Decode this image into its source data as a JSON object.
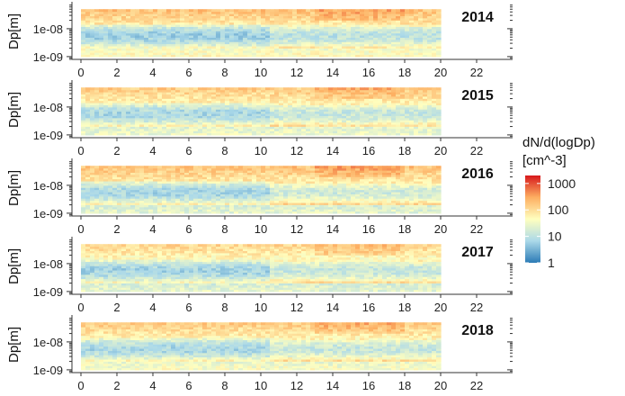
{
  "chart_data": {
    "type": "heatmap",
    "y_axis_title": "Dp[m]",
    "x_ticks": [
      0,
      2,
      4,
      6,
      8,
      10,
      12,
      14,
      16,
      18,
      20,
      22
    ],
    "xlim": [
      -0.5,
      24
    ],
    "y_ticks": [
      "1e-08",
      "1e-09"
    ],
    "ylim_log10": [
      -9.1,
      -7.1
    ],
    "data_x_range": [
      0,
      20
    ],
    "data_y_range_log10": [
      -9.0,
      -7.3
    ],
    "colorbar": {
      "title_line1": "dN/d(logDp)",
      "title_line2": "[cm^-3]",
      "tick_labels": [
        "1000",
        "100",
        "10",
        "1"
      ],
      "tick_values": [
        1000,
        100,
        10,
        1
      ],
      "range": [
        1,
        2000
      ],
      "scale": "log",
      "colors": [
        "#2c7bb6",
        "#abd9e9",
        "#ffffbf",
        "#fdae61",
        "#d7191c"
      ]
    },
    "panels": [
      {
        "year": "2014",
        "top_level": 2.3,
        "band_level": 0.75,
        "late_band_level": 1.0,
        "bottom_level": 1.7
      },
      {
        "year": "2015",
        "top_level": 2.2,
        "band_level": 0.85,
        "late_band_level": 1.1,
        "bottom_level": 1.5
      },
      {
        "year": "2016",
        "top_level": 2.3,
        "band_level": 0.85,
        "late_band_level": 1.2,
        "bottom_level": 1.4
      },
      {
        "year": "2017",
        "top_level": 2.1,
        "band_level": 0.8,
        "late_band_level": 1.1,
        "bottom_level": 1.4
      },
      {
        "year": "2018",
        "top_level": 2.2,
        "band_level": 0.85,
        "late_band_level": 1.1,
        "bottom_level": 1.6
      }
    ]
  }
}
